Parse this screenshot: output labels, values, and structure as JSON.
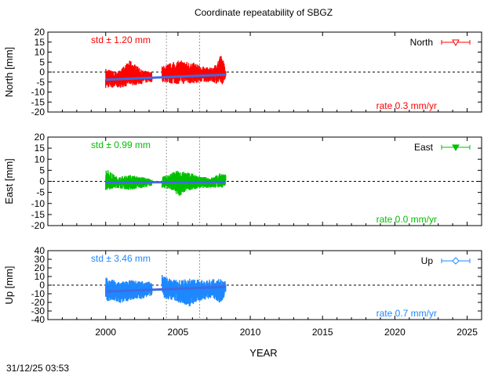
{
  "chart_data": [
    {
      "type": "scatter",
      "title": "Coordinate repeatability of SBGZ",
      "ylabel": "North [mm]",
      "xlabel": "YEAR",
      "xlim": [
        1996,
        2026
      ],
      "ylim": [
        -20,
        20
      ],
      "yticks": [
        "20",
        "15",
        "10",
        "5",
        "0",
        "-5",
        "-10",
        "-15",
        "-20"
      ],
      "xticks": [
        "2000",
        "2005",
        "2010",
        "2015",
        "2020",
        "2025"
      ],
      "series_name": "North",
      "color": "#ff0000",
      "marker": "triangle-down",
      "std_label": "std ± 1.20 mm",
      "rate_label": "rate  0.3 mm/yr",
      "trend": [
        [
          2000.0,
          -3.8
        ],
        [
          2008.3,
          -1.3
        ]
      ],
      "envelope": [
        [
          2000.0,
          -8,
          2
        ],
        [
          2000.8,
          -8,
          0
        ],
        [
          2001.7,
          -7,
          6
        ],
        [
          2002.5,
          -6,
          1
        ],
        [
          2003.2,
          -5,
          0
        ],
        null,
        [
          2003.9,
          -5,
          3
        ],
        [
          2004.6,
          -6,
          5
        ],
        [
          2005.2,
          -6,
          6
        ],
        [
          2006.0,
          -6,
          5
        ],
        [
          2006.6,
          -5,
          3
        ],
        [
          2007.4,
          -5,
          2
        ],
        [
          2008.0,
          -7,
          9
        ],
        [
          2008.3,
          -3,
          2
        ]
      ],
      "vlines": [
        2004.2,
        2006.5
      ],
      "zero_line": true
    },
    {
      "type": "scatter",
      "ylabel": "East [mm]",
      "xlim": [
        1996,
        2026
      ],
      "ylim": [
        -20,
        20
      ],
      "yticks": [
        "20",
        "15",
        "10",
        "5",
        "0",
        "-5",
        "-10",
        "-15",
        "-20"
      ],
      "xticks": [
        "2000",
        "2005",
        "2010",
        "2015",
        "2020",
        "2025"
      ],
      "series_name": "East",
      "color": "#00c000",
      "marker": "triangle-down-filled",
      "std_label": "std ± 0.99 mm",
      "rate_label": "rate  0.0 mm/yr",
      "trend": [
        [
          2000.0,
          -0.5
        ],
        [
          2008.3,
          -0.3
        ]
      ],
      "envelope": [
        [
          2000.0,
          -4,
          6
        ],
        [
          2000.8,
          -3,
          2
        ],
        [
          2001.7,
          -4,
          3
        ],
        [
          2002.5,
          -3,
          2
        ],
        [
          2003.2,
          -2,
          1
        ],
        null,
        [
          2003.9,
          -3,
          2
        ],
        [
          2004.6,
          -4,
          4
        ],
        [
          2005.0,
          -7,
          5
        ],
        [
          2005.8,
          -4,
          4
        ],
        [
          2006.6,
          -3,
          2
        ],
        [
          2007.4,
          -3,
          2
        ],
        [
          2008.0,
          -3,
          4
        ],
        [
          2008.3,
          -2,
          3
        ]
      ],
      "vlines": [
        2004.2,
        2006.5
      ],
      "zero_line": true
    },
    {
      "type": "scatter",
      "ylabel": "Up [mm]",
      "xlabel": "YEAR",
      "xlim": [
        1996,
        2026
      ],
      "ylim": [
        -40,
        40
      ],
      "yticks": [
        "40",
        "30",
        "20",
        "10",
        "0",
        "-10",
        "-20",
        "-30",
        "-40"
      ],
      "xticks": [
        "2000",
        "2005",
        "2010",
        "2015",
        "2020",
        "2025"
      ],
      "series_name": "Up",
      "color": "#1e88ff",
      "marker": "diamond",
      "std_label": "std ± 3.46 mm",
      "rate_label": "rate  0.7 mm/yr",
      "trend": [
        [
          2000.0,
          -7.5
        ],
        [
          2008.3,
          -2.0
        ]
      ],
      "envelope": [
        [
          2000.0,
          -18,
          9
        ],
        [
          2001.0,
          -22,
          4
        ],
        [
          2001.8,
          -17,
          6
        ],
        [
          2002.5,
          -16,
          5
        ],
        [
          2003.2,
          -12,
          4
        ],
        null,
        [
          2003.9,
          -15,
          12
        ],
        [
          2004.6,
          -18,
          7
        ],
        [
          2005.0,
          -20,
          6
        ],
        [
          2005.8,
          -25,
          8
        ],
        [
          2006.6,
          -18,
          6
        ],
        [
          2007.4,
          -15,
          7
        ],
        [
          2008.0,
          -22,
          7
        ],
        [
          2008.3,
          -12,
          5
        ]
      ],
      "vlines": [
        2004.2,
        2006.5
      ],
      "zero_line": true
    }
  ],
  "footer": {
    "timestamp": "31/12/25 03:53"
  },
  "trend_color": "#4169e1"
}
